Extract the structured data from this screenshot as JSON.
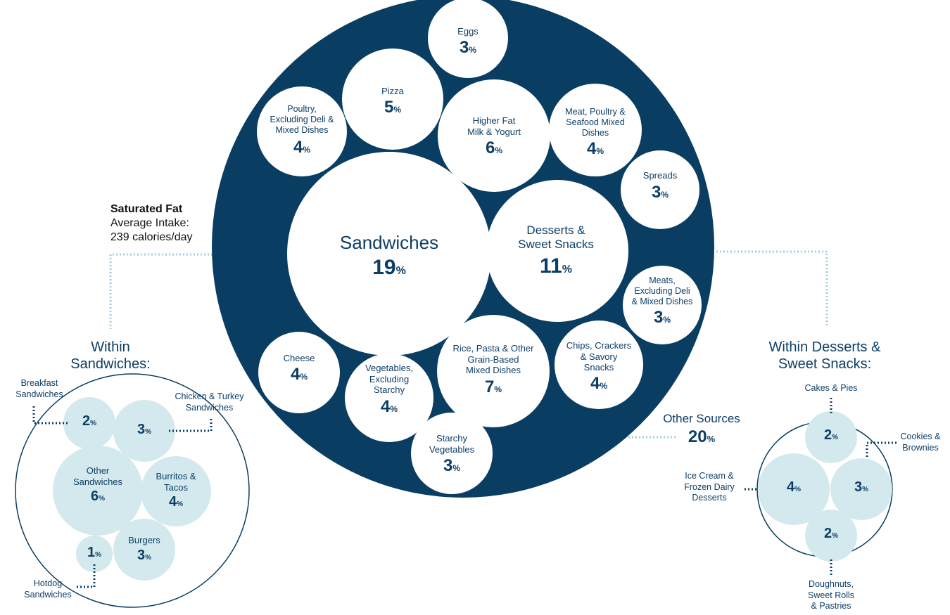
{
  "colors": {
    "navy": "#0a3d62",
    "white": "#ffffff",
    "light_blue": "#d3e9ed",
    "connector": "#9fd0d9",
    "dark_dots": "#0a3d62"
  },
  "header": {
    "title": "Saturated Fat",
    "subtitle_line1": "Average Intake:",
    "subtitle_line2": "239 calories/day"
  },
  "pct_symbol": "%",
  "main": {
    "other_sources": {
      "label": "Other Sources",
      "value": "20"
    },
    "categories": [
      {
        "id": "sandwiches",
        "lines": [
          "Sandwiches"
        ],
        "value": "19"
      },
      {
        "id": "desserts",
        "lines": [
          "Desserts &",
          "Sweet Snacks"
        ],
        "value": "11"
      },
      {
        "id": "eggs",
        "lines": [
          "Eggs"
        ],
        "value": "3"
      },
      {
        "id": "pizza",
        "lines": [
          "Pizza"
        ],
        "value": "5"
      },
      {
        "id": "poultry",
        "lines": [
          "Poultry,",
          "Excluding Deli &",
          "Mixed Dishes"
        ],
        "value": "4"
      },
      {
        "id": "milk",
        "lines": [
          "Higher Fat",
          "Milk & Yogurt"
        ],
        "value": "6"
      },
      {
        "id": "meat-mixed",
        "lines": [
          "Meat, Poultry &",
          "Seafood Mixed",
          "Dishes"
        ],
        "value": "4"
      },
      {
        "id": "spreads",
        "lines": [
          "Spreads"
        ],
        "value": "3"
      },
      {
        "id": "meats",
        "lines": [
          "Meats,",
          "Excluding Deli",
          "& Mixed Dishes"
        ],
        "value": "3"
      },
      {
        "id": "chips",
        "lines": [
          "Chips, Crackers",
          "& Savory",
          "Snacks"
        ],
        "value": "4"
      },
      {
        "id": "rice",
        "lines": [
          "Rice, Pasta & Other",
          "Grain-Based",
          "Mixed Dishes"
        ],
        "value": "7"
      },
      {
        "id": "vegetables",
        "lines": [
          "Vegetables,",
          "Excluding",
          "Starchy"
        ],
        "value": "4"
      },
      {
        "id": "starchy",
        "lines": [
          "Starchy",
          "Vegetables"
        ],
        "value": "3"
      },
      {
        "id": "cheese",
        "lines": [
          "Cheese"
        ],
        "value": "4"
      }
    ]
  },
  "sandwich_breakdown": {
    "title_line1": "Within",
    "title_line2": "Sandwiches:",
    "items": [
      {
        "id": "breakfast",
        "callout": [
          "Breakfast",
          "Sandwiches"
        ],
        "value": "2"
      },
      {
        "id": "chicken",
        "callout": [
          "Chicken & Turkey",
          "Sandwiches"
        ],
        "value": "3"
      },
      {
        "id": "other",
        "lines": [
          "Other",
          "Sandwiches"
        ],
        "value": "6"
      },
      {
        "id": "burritos",
        "lines": [
          "Burritos &",
          "Tacos"
        ],
        "value": "4"
      },
      {
        "id": "hotdog",
        "callout": [
          "Hotdog",
          "Sandwiches"
        ],
        "value": "1"
      },
      {
        "id": "burgers",
        "lines": [
          "Burgers"
        ],
        "value": "3"
      }
    ]
  },
  "dessert_breakdown": {
    "title_line1": "Within Desserts &",
    "title_line2": "Sweet Snacks:",
    "items": [
      {
        "id": "cakes",
        "callout": [
          "Cakes & Pies"
        ],
        "value": "2"
      },
      {
        "id": "cookies",
        "callout": [
          "Cookies &",
          "Brownies"
        ],
        "value": "3"
      },
      {
        "id": "icecream",
        "callout": [
          "Ice Cream &",
          "Frozen Dairy",
          "Desserts"
        ],
        "value": "4"
      },
      {
        "id": "doughnuts",
        "callout": [
          "Doughnuts,",
          "Sweet Rolls",
          "& Pastries"
        ],
        "value": "2"
      }
    ]
  }
}
